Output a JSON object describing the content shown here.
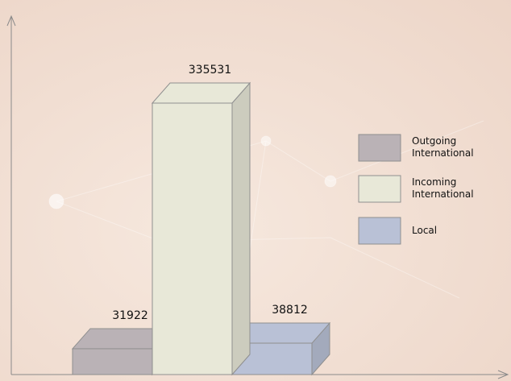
{
  "chart_data": {
    "type": "bar",
    "categories": [
      "Outgoing International",
      "Incoming International",
      "Local"
    ],
    "values": [
      31922,
      335531,
      38812
    ],
    "colors": [
      "#bab2b6",
      "#e8e8d8",
      "#b9c1d6"
    ],
    "legend": "right"
  }
}
